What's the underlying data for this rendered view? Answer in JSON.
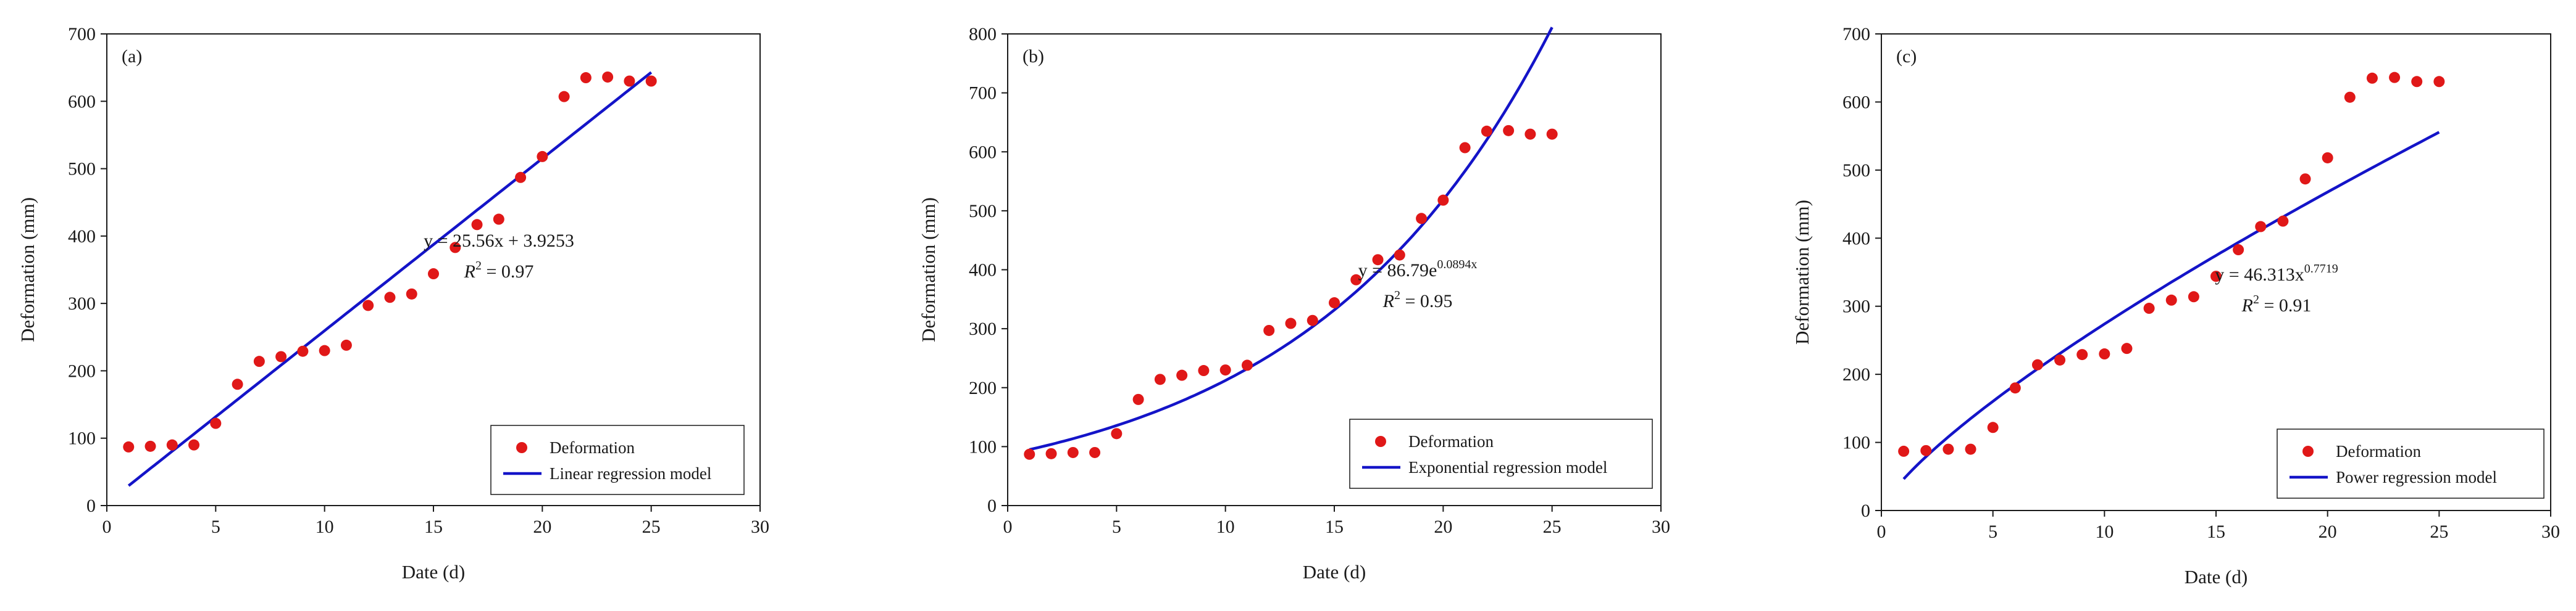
{
  "colors": {
    "points": "#e01818",
    "fit_line": "#1414c8",
    "axis": "#1a1a1a",
    "background": "#ffffff"
  },
  "chart_data": [
    {
      "type": "scatter",
      "panel": "(a)",
      "xlabel": "Date (d)",
      "ylabel": "Deformation (mm)",
      "xlim": [
        0,
        30
      ],
      "ylim": [
        0,
        700
      ],
      "xticks": [
        0,
        5,
        10,
        15,
        20,
        25,
        30
      ],
      "yticks": [
        0,
        100,
        200,
        300,
        400,
        500,
        600,
        700
      ],
      "x": [
        1,
        2,
        3,
        4,
        5,
        6,
        7,
        8,
        9,
        10,
        11,
        12,
        13,
        14,
        15,
        16,
        17,
        18,
        19,
        20,
        21,
        22,
        23,
        24,
        25
      ],
      "y": [
        87,
        88,
        90,
        90,
        122,
        180,
        214,
        221,
        229,
        230,
        238,
        297,
        309,
        314,
        344,
        383,
        417,
        425,
        487,
        518,
        607,
        635,
        636,
        630,
        630
      ],
      "fit": {
        "model": "linear",
        "a": 25.56,
        "b": 3.9253,
        "x_range": [
          1,
          25
        ]
      },
      "equation": {
        "main": "y = 25.56x + 3.9253",
        "r2_label": "R",
        "r2_value": " = 0.97"
      },
      "legend": {
        "position": "bottom-right",
        "points_label": "Deformation",
        "line_label": "Linear regression model"
      }
    },
    {
      "type": "scatter",
      "panel": "(b)",
      "xlabel": "Date (d)",
      "ylabel": "Deformation (mm)",
      "xlim": [
        0,
        30
      ],
      "ylim": [
        0,
        800
      ],
      "xticks": [
        0,
        5,
        10,
        15,
        20,
        25,
        30
      ],
      "yticks": [
        0,
        100,
        200,
        300,
        400,
        500,
        600,
        700,
        800
      ],
      "x": [
        1,
        2,
        3,
        4,
        5,
        6,
        7,
        8,
        9,
        10,
        11,
        12,
        13,
        14,
        15,
        16,
        17,
        18,
        19,
        20,
        21,
        22,
        23,
        24,
        25
      ],
      "y": [
        87,
        88,
        90,
        90,
        122,
        180,
        214,
        221,
        229,
        230,
        238,
        297,
        309,
        314,
        344,
        383,
        417,
        425,
        487,
        518,
        607,
        635,
        636,
        630,
        630
      ],
      "fit": {
        "model": "exponential",
        "a": 86.79,
        "b": 0.0894,
        "x_range": [
          1,
          25
        ]
      },
      "equation": {
        "main": "y = 86.79e",
        "exponent": "0.0894x",
        "r2_label": "R",
        "r2_value": " = 0.95"
      },
      "legend": {
        "position": "bottom-right",
        "points_label": "Deformation",
        "line_label": "Exponential regression model"
      }
    },
    {
      "type": "scatter",
      "panel": "(c)",
      "xlabel": "Date (d)",
      "ylabel": "Deformation (mm)",
      "xlim": [
        0,
        30
      ],
      "ylim": [
        0,
        700
      ],
      "xticks": [
        0,
        5,
        10,
        15,
        20,
        25,
        30
      ],
      "yticks": [
        0,
        100,
        200,
        300,
        400,
        500,
        600,
        700
      ],
      "x": [
        1,
        2,
        3,
        4,
        5,
        6,
        7,
        8,
        9,
        10,
        11,
        12,
        13,
        14,
        15,
        16,
        17,
        18,
        19,
        20,
        21,
        22,
        23,
        24,
        25
      ],
      "y": [
        87,
        88,
        90,
        90,
        122,
        180,
        214,
        221,
        229,
        230,
        238,
        297,
        309,
        314,
        344,
        383,
        417,
        425,
        487,
        518,
        607,
        635,
        636,
        630,
        630
      ],
      "fit": {
        "model": "power",
        "a": 46.313,
        "b": 0.7719,
        "x_range": [
          1,
          25
        ]
      },
      "equation": {
        "main": "y = 46.313x",
        "exponent": "0.7719",
        "r2_label": "R",
        "r2_value": " = 0.91"
      },
      "legend": {
        "position": "bottom-right",
        "points_label": "Deformation",
        "line_label": "Power regression model"
      }
    }
  ]
}
